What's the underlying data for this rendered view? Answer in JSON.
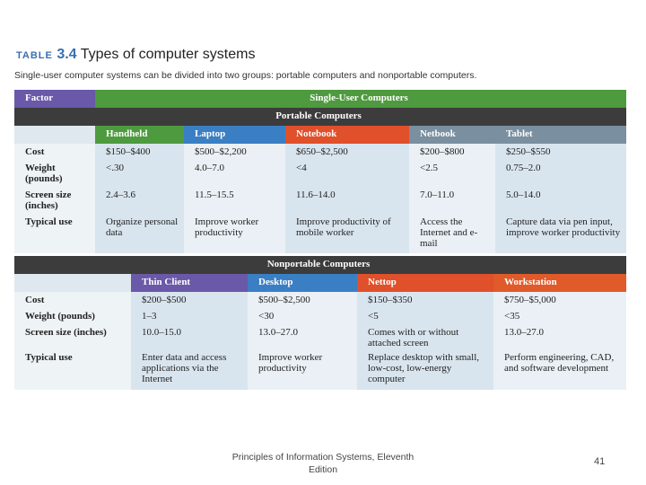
{
  "header": {
    "label": "TABLE",
    "number": "3.4",
    "title": "Types of computer systems",
    "subtitle": "Single-user computer systems can be divided into two groups: portable computers and nonportable computers."
  },
  "table": {
    "factor_header": "Factor",
    "group_header": "Single-User Computers",
    "portable": {
      "title": "Portable Computers",
      "columns": [
        "Handheld",
        "Laptop",
        "Notebook",
        "Netbook",
        "Tablet"
      ],
      "rows": [
        [
          "Cost",
          "$150–$400",
          "$500–$2,200",
          "$650–$2,500",
          "$200–$800",
          "$250–$550"
        ],
        [
          "Weight (pounds)",
          "<.30",
          "4.0–7.0",
          "<4",
          "<2.5",
          "0.75–2.0"
        ],
        [
          "Screen size (inches)",
          "2.4–3.6",
          "11.5–15.5",
          "11.6–14.0",
          "7.0–11.0",
          "5.0–14.0"
        ],
        [
          "Typical use",
          "Organize personal data",
          "Improve worker productivity",
          "Improve productivity of mobile worker",
          "Access the Internet and e-mail",
          "Capture data via pen input, improve worker productivity"
        ]
      ]
    },
    "nonportable": {
      "title": "Nonportable Computers",
      "columns": [
        "Thin Client",
        "Desktop",
        "Nettop",
        "Workstation"
      ],
      "rows": [
        [
          "Cost",
          "$200–$500",
          "$500–$2,500",
          "$150–$350",
          "$750–$5,000"
        ],
        [
          "Weight (pounds)",
          "1–3",
          "<30",
          "<5",
          "<35"
        ],
        [
          "Screen size (inches)",
          "10.0–15.0",
          "13.0–27.0",
          "Comes with or without attached screen",
          "13.0–27.0"
        ],
        [
          "Typical use",
          "Enter data and access applications via the Internet",
          "Improve worker productivity",
          "Replace desktop with small, low-cost, low-energy computer",
          "Perform engineering, CAD, and software development"
        ]
      ]
    }
  },
  "footer": {
    "text": "Principles of Information Systems, Eleventh Edition",
    "page": "41"
  }
}
